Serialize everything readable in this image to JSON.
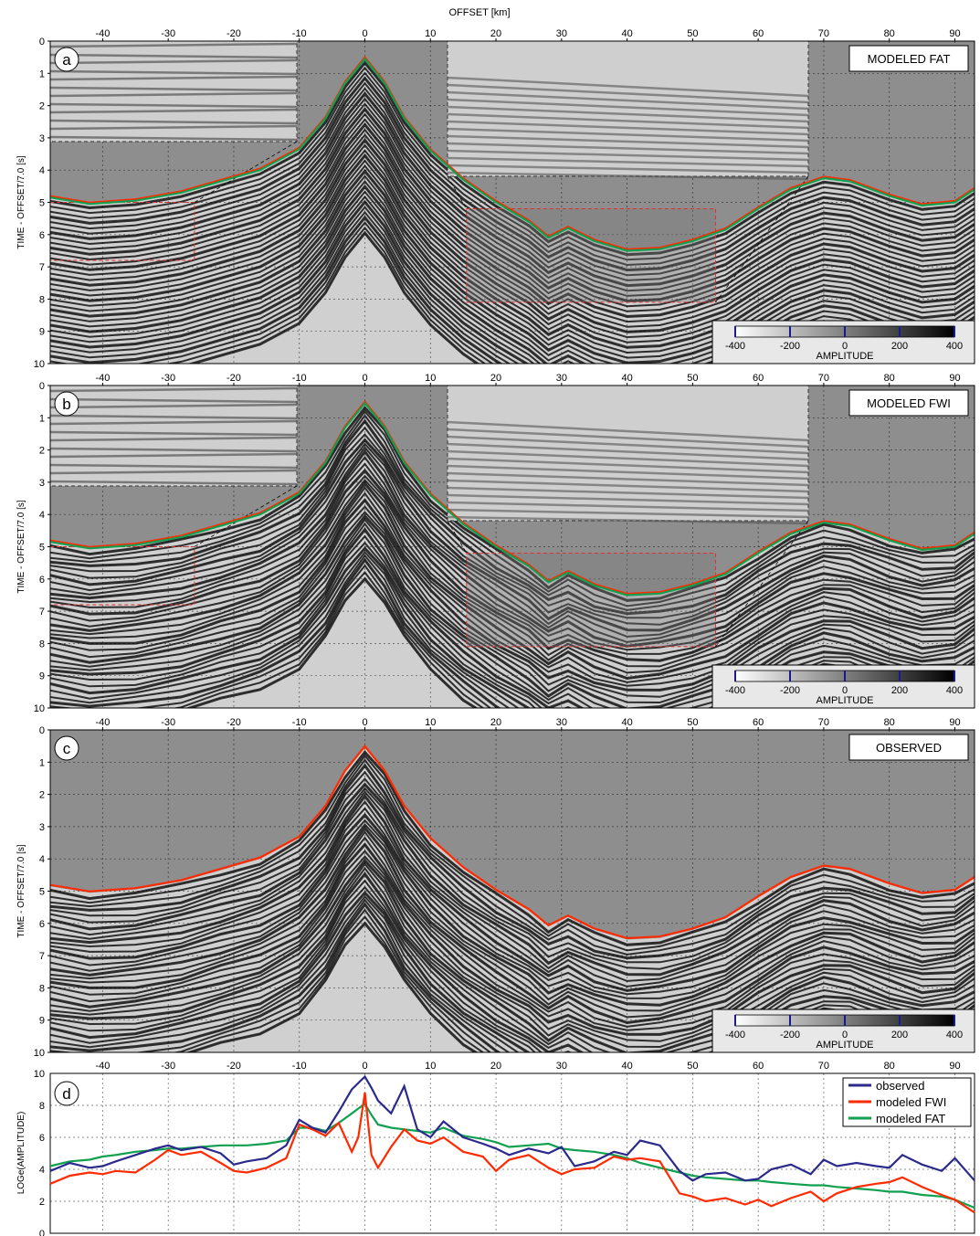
{
  "figure": {
    "top_axis_title": "OFFSET [km]",
    "x_ticks": [
      "-40",
      "-30",
      "-20",
      "-10",
      "0",
      "10",
      "20",
      "30",
      "40",
      "50",
      "60",
      "70",
      "80",
      "90"
    ],
    "colorbar_ticks": [
      "-400",
      "-200",
      "0",
      "200",
      "400"
    ],
    "colorbar_label": "AMPLITUDE"
  },
  "chart_data": [
    {
      "panel": "a",
      "type": "heatmap",
      "title": "MODELED FAT",
      "xlabel": "OFFSET [km]",
      "ylabel": "TIME - OFFSET/7.0  [s]",
      "xlim": [
        -48,
        93
      ],
      "ylim": [
        10,
        0
      ],
      "y_ticks": [
        "0",
        "1",
        "2",
        "3",
        "4",
        "5",
        "6",
        "7",
        "8",
        "9",
        "10"
      ],
      "colorbar": {
        "label": "AMPLITUDE",
        "range": [
          -400,
          400
        ],
        "ticks": [
          -400,
          -200,
          0,
          200,
          400
        ]
      },
      "grid": true,
      "first_arrival_series": [
        "red",
        "green"
      ]
    },
    {
      "panel": "b",
      "type": "heatmap",
      "title": "MODELED FWI",
      "xlabel": "OFFSET [km]",
      "ylabel": "TIME - OFFSET/7.0  [s]",
      "xlim": [
        -48,
        93
      ],
      "ylim": [
        10,
        0
      ],
      "y_ticks": [
        "0",
        "1",
        "2",
        "3",
        "4",
        "5",
        "6",
        "7",
        "8",
        "9",
        "10"
      ],
      "colorbar": {
        "label": "AMPLITUDE",
        "range": [
          -400,
          400
        ],
        "ticks": [
          -400,
          -200,
          0,
          200,
          400
        ]
      },
      "grid": true,
      "first_arrival_series": [
        "red",
        "green"
      ]
    },
    {
      "panel": "c",
      "type": "heatmap",
      "title": "OBSERVED",
      "xlabel": "OFFSET [km]",
      "ylabel": "TIME - OFFSET/7.0  [s]",
      "xlim": [
        -48,
        93
      ],
      "ylim": [
        10,
        0
      ],
      "y_ticks": [
        "0",
        "1",
        "2",
        "3",
        "4",
        "5",
        "6",
        "7",
        "8",
        "9",
        "10"
      ],
      "colorbar": {
        "label": "AMPLITUDE",
        "range": [
          -400,
          400
        ],
        "ticks": [
          -400,
          -200,
          0,
          200,
          400
        ]
      },
      "grid": true,
      "first_arrival_series": [
        "red"
      ]
    },
    {
      "panel": "d",
      "type": "line",
      "ylabel": "LOGe(AMPLITUDE)",
      "xlim": [
        -48,
        93
      ],
      "ylim": [
        0,
        10
      ],
      "y_ticks": [
        "0",
        "2",
        "4",
        "6",
        "8",
        "10"
      ],
      "grid": true,
      "legend_position": "top-right",
      "x": [
        -48,
        -45,
        -42,
        -40,
        -38,
        -35,
        -32,
        -30,
        -28,
        -25,
        -22,
        -20,
        -18,
        -15,
        -12,
        -10,
        -8,
        -6,
        -4,
        -2,
        -1,
        0,
        1,
        2,
        4,
        6,
        8,
        10,
        12,
        15,
        18,
        20,
        22,
        25,
        28,
        30,
        32,
        35,
        38,
        40,
        42,
        45,
        48,
        50,
        52,
        55,
        58,
        60,
        62,
        65,
        68,
        70,
        72,
        75,
        78,
        80,
        82,
        85,
        88,
        90,
        93
      ],
      "series": [
        {
          "name": "observed",
          "color": "#2b2a8c",
          "values": [
            3.9,
            4.4,
            4.1,
            4.2,
            4.5,
            4.9,
            5.3,
            5.5,
            5.2,
            5.4,
            5.0,
            4.3,
            4.5,
            4.7,
            5.5,
            7.1,
            6.6,
            6.3,
            7.6,
            9.0,
            9.4,
            9.8,
            9.1,
            8.3,
            7.5,
            9.2,
            6.5,
            6.0,
            7.0,
            6.0,
            5.6,
            5.3,
            4.9,
            5.3,
            5.0,
            5.4,
            4.2,
            4.5,
            5.1,
            4.9,
            5.8,
            5.5,
            3.9,
            3.3,
            3.7,
            3.8,
            3.3,
            3.4,
            4.0,
            4.3,
            3.7,
            4.6,
            4.2,
            4.4,
            4.2,
            4.1,
            4.9,
            4.3,
            3.9,
            4.7,
            3.3
          ]
        },
        {
          "name": "modeled FWI",
          "color": "#ff2a00",
          "values": [
            3.1,
            3.6,
            3.8,
            3.7,
            3.9,
            3.8,
            4.6,
            5.2,
            4.9,
            5.1,
            4.4,
            3.9,
            3.8,
            4.1,
            4.7,
            6.8,
            6.5,
            6.1,
            6.9,
            5.1,
            6.0,
            8.8,
            4.9,
            4.1,
            5.4,
            6.5,
            5.8,
            5.6,
            6.0,
            5.1,
            4.8,
            3.9,
            4.6,
            4.9,
            4.1,
            3.7,
            4.0,
            4.1,
            4.8,
            4.6,
            4.7,
            4.5,
            2.5,
            2.3,
            2.0,
            2.2,
            1.8,
            2.1,
            1.7,
            2.2,
            2.6,
            2.0,
            2.5,
            2.9,
            3.1,
            3.2,
            3.5,
            2.9,
            2.4,
            2.1,
            1.3
          ]
        },
        {
          "name": "modeled FAT",
          "color": "#10a050",
          "values": [
            4.2,
            4.5,
            4.6,
            4.8,
            4.9,
            5.1,
            5.2,
            5.3,
            5.3,
            5.4,
            5.5,
            5.5,
            5.5,
            5.6,
            5.8,
            6.6,
            6.6,
            6.4,
            6.9,
            7.5,
            7.8,
            8.1,
            7.4,
            6.8,
            6.6,
            6.5,
            6.4,
            6.3,
            6.6,
            6.1,
            5.9,
            5.7,
            5.4,
            5.5,
            5.6,
            5.3,
            5.2,
            5.1,
            4.9,
            4.7,
            4.4,
            4.1,
            3.8,
            3.6,
            3.5,
            3.4,
            3.3,
            3.3,
            3.2,
            3.1,
            3.0,
            3.0,
            2.9,
            2.8,
            2.7,
            2.6,
            2.6,
            2.4,
            2.3,
            2.1,
            1.6
          ]
        }
      ]
    }
  ]
}
